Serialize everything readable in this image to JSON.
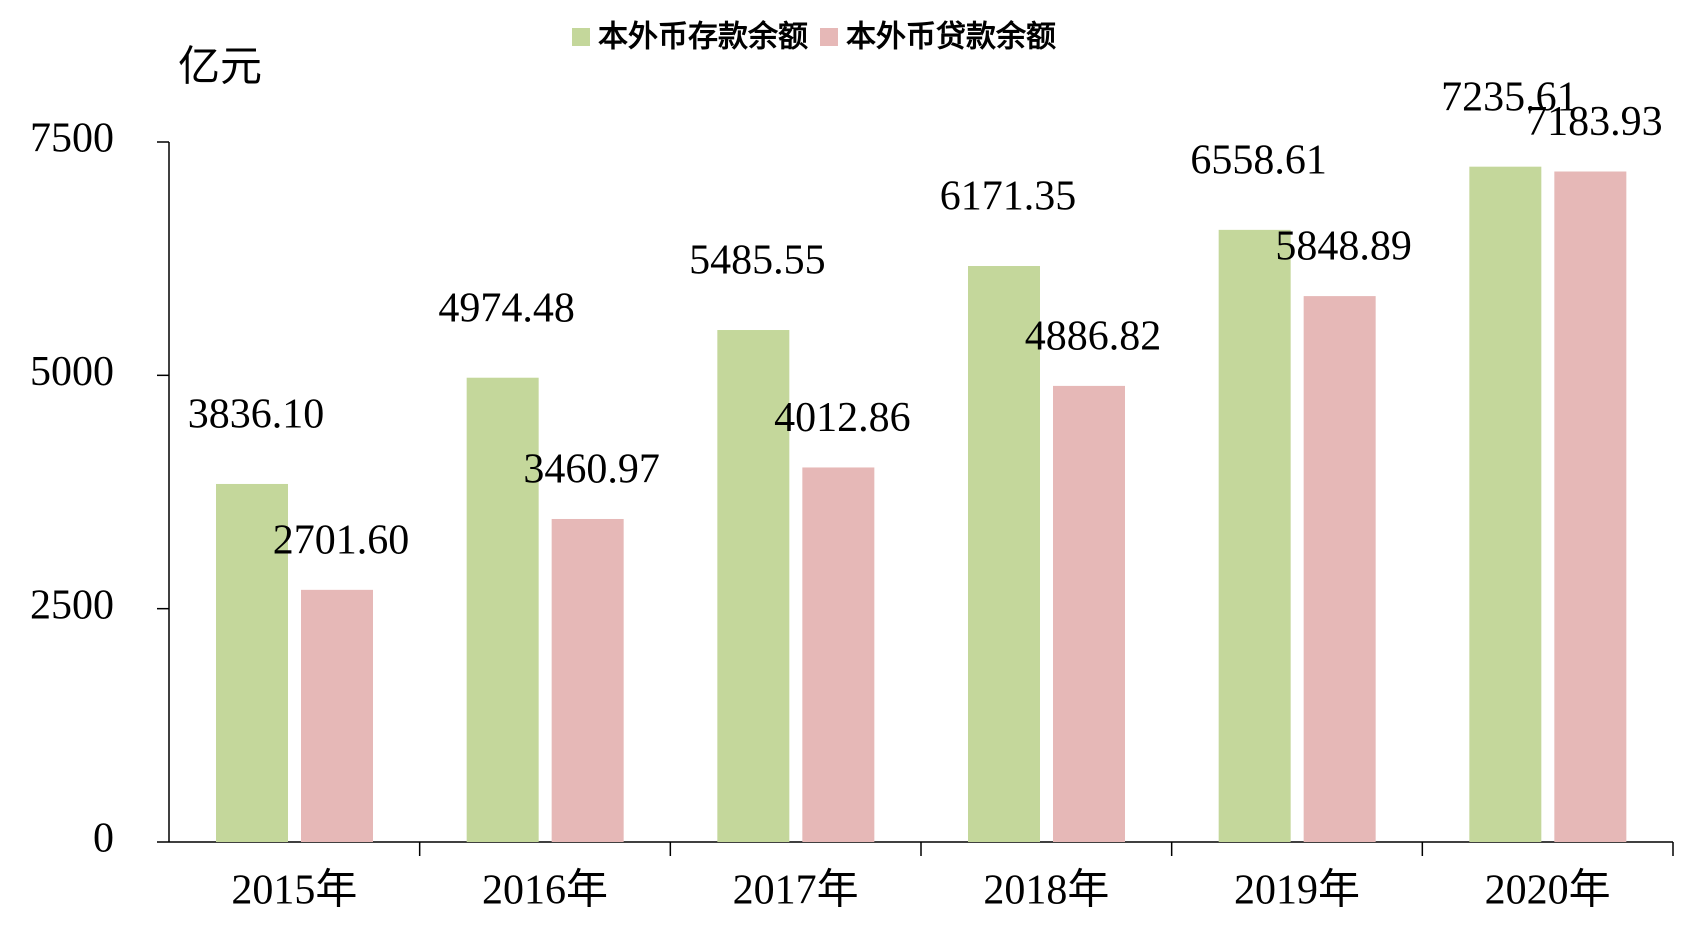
{
  "chart_data": {
    "type": "bar",
    "y_label": "亿元",
    "categories": [
      "2015年",
      "2016年",
      "2017年",
      "2018年",
      "2019年",
      "2020年"
    ],
    "series": [
      {
        "name": "本外币存款余额",
        "color": "#c4d79b",
        "values": [
          3836.1,
          4974.48,
          5485.55,
          6171.35,
          6558.61,
          7235.61
        ],
        "value_labels": [
          "3836.10",
          "4974.48",
          "5485.55",
          "6171.35",
          "6558.61",
          "7235.61"
        ]
      },
      {
        "name": "本外币贷款余额",
        "color": "#e6b8b7",
        "values": [
          2701.6,
          3460.97,
          4012.86,
          4886.82,
          5848.89,
          7183.93
        ],
        "value_labels": [
          "2701.60",
          "3460.97",
          "4012.86",
          "4886.82",
          "5848.89",
          "7183.93"
        ]
      }
    ],
    "ylim": [
      0,
      7500
    ],
    "yticks": [
      0,
      2500,
      5000,
      7500
    ],
    "legend": "top"
  }
}
